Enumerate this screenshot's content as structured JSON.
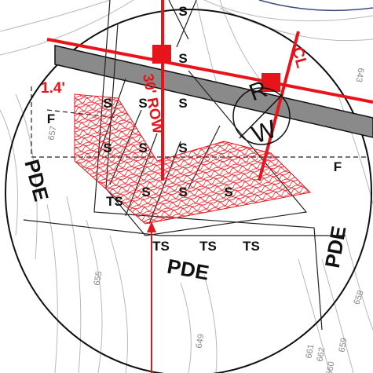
{
  "sewer_labels": [
    "S",
    "S",
    "S",
    "S",
    "S",
    "S",
    "S",
    "S",
    "S",
    "S",
    "S"
  ],
  "ts_labels": [
    "TS",
    "TS",
    "TS",
    "TS"
  ],
  "fence_labels": [
    "F",
    "F"
  ],
  "pde_labels": [
    "PDE",
    "PDE",
    "PDE"
  ],
  "row_label": "30' ROW",
  "rw_label": [
    "R",
    "W"
  ],
  "centerline_label": "CL",
  "dimension_label": "1.4'",
  "contour_labels": [
    "655",
    "649",
    "657",
    "643",
    "659",
    "660",
    "661",
    "662",
    "658"
  ]
}
